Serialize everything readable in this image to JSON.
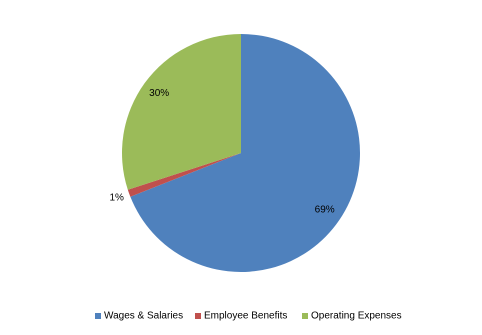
{
  "chart_data": {
    "type": "pie",
    "categories": [
      "Wages & Salaries",
      "Employee Benefits",
      "Operating Expenses"
    ],
    "values": [
      69,
      1,
      30
    ],
    "value_labels": [
      "69%",
      "1%",
      "30%"
    ],
    "colors": [
      "#4f81bd",
      "#c0504d",
      "#9bbb59"
    ],
    "legend": "bottom"
  }
}
